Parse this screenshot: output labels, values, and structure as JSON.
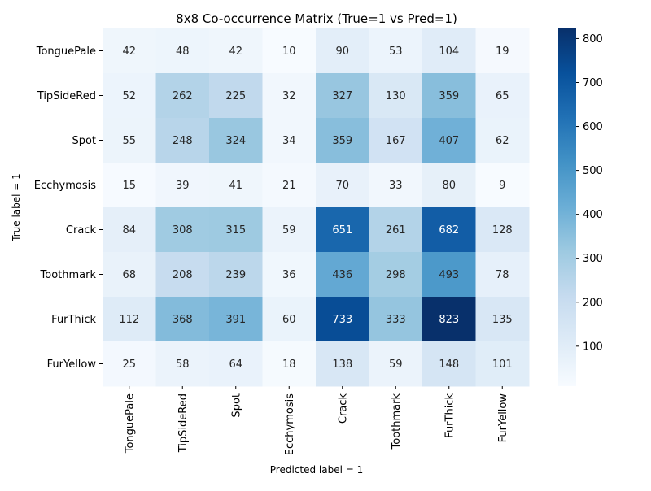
{
  "chart_data": {
    "type": "heatmap",
    "title": "8x8 Co-occurrence Matrix (True=1 vs Pred=1)",
    "xlabel": "Predicted label = 1",
    "ylabel": "True label = 1",
    "row_labels": [
      "TonguePale",
      "TipSideRed",
      "Spot",
      "Ecchymosis",
      "Crack",
      "Toothmark",
      "FurThick",
      "FurYellow"
    ],
    "col_labels": [
      "TonguePale",
      "TipSideRed",
      "Spot",
      "Ecchymosis",
      "Crack",
      "Toothmark",
      "FurThick",
      "FurYellow"
    ],
    "values": [
      [
        42,
        48,
        42,
        10,
        90,
        53,
        104,
        19
      ],
      [
        52,
        262,
        225,
        32,
        327,
        130,
        359,
        65
      ],
      [
        55,
        248,
        324,
        34,
        359,
        167,
        407,
        62
      ],
      [
        15,
        39,
        41,
        21,
        70,
        33,
        80,
        9
      ],
      [
        84,
        308,
        315,
        59,
        651,
        261,
        682,
        128
      ],
      [
        68,
        208,
        239,
        36,
        436,
        298,
        493,
        78
      ],
      [
        112,
        368,
        391,
        60,
        733,
        333,
        823,
        135
      ],
      [
        25,
        58,
        64,
        18,
        138,
        59,
        148,
        101
      ]
    ],
    "colormap": "Blues",
    "colorbar_range": [
      9,
      823
    ],
    "colorbar_ticks": [
      100,
      200,
      300,
      400,
      500,
      600,
      700,
      800
    ],
    "grid": false
  }
}
